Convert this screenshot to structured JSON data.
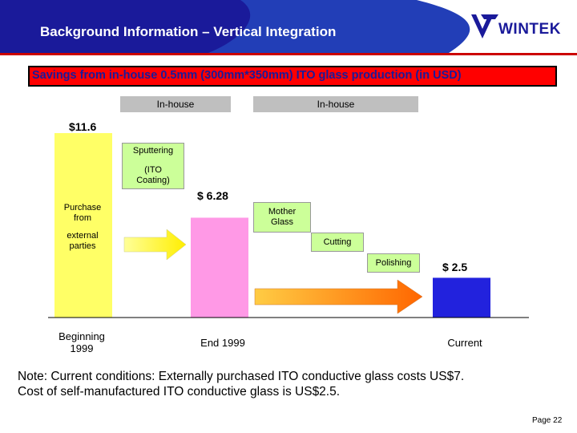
{
  "header": {
    "title": "Background Information – Vertical Integration",
    "logo_text": "WINTEK",
    "colors": {
      "bar": "#1a1a9a",
      "rule": "#cc0000",
      "wave": "#2a5cd0"
    }
  },
  "subtitle": "Savings from in-house 0.5mm (300mm*350mm) ITO glass production (in USD)",
  "inhouse_labels": [
    "In-house",
    "In-house"
  ],
  "step_labels": {
    "purchase_line1": "Purchase",
    "purchase_line2": "from",
    "external_line1": "external",
    "external_line2": "parties",
    "sputtering": "Sputtering",
    "ito_coating_line1": "(ITO",
    "ito_coating_line2": "Coating)",
    "mother_glass_line1": "Mother",
    "mother_glass_line2": "Glass",
    "cutting": "Cutting",
    "polishing": "Polishing"
  },
  "chart_data": {
    "type": "bar",
    "categories": [
      "Beginning 1999",
      "End 1999",
      "Current"
    ],
    "category_lines": [
      [
        "Beginning",
        "1999"
      ],
      [
        "End 1999"
      ],
      [
        "Current"
      ]
    ],
    "values": [
      11.6,
      6.28,
      2.5
    ],
    "value_labels": [
      "$11.6",
      "$ 6.28",
      "$ 2.5"
    ],
    "colors": [
      "#ffff66",
      "#ff99e6",
      "#2222dd"
    ],
    "arrow_colors": {
      "first": "#ffff33",
      "second": "#ff7700"
    },
    "grid": false,
    "legend": "none"
  },
  "note": {
    "line1": "Note: Current conditions:  Externally purchased ITO conductive glass costs US$7.",
    "line2": "Cost of self-manufactured ITO conductive glass is US$2.5."
  },
  "page_number": "Page 22"
}
